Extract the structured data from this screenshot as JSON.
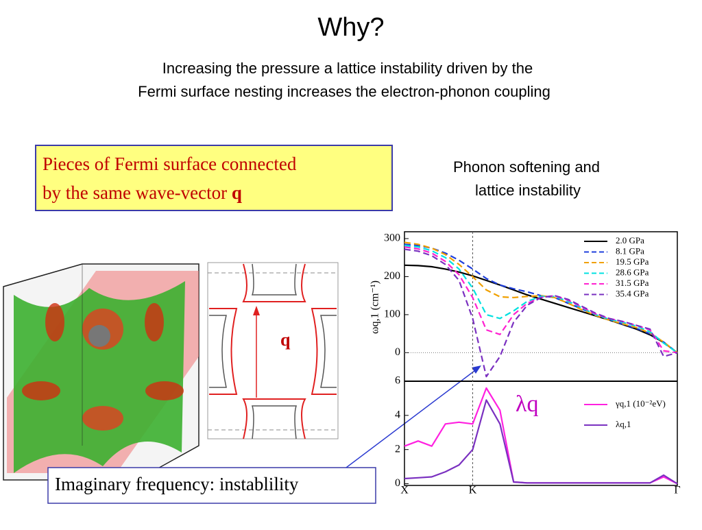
{
  "title": "Why?",
  "subtitle": [
    "Increasing the pressure a lattice instability driven by the",
    "Fermi surface nesting increases the electron-phonon coupling"
  ],
  "box": {
    "line1": "Pieces of Fermi surface connected",
    "line2": "by the same wave-vector ",
    "q": "q"
  },
  "phonon_caption": [
    "Phonon softening and",
    "lattice instability"
  ],
  "q_label": "q",
  "imaginary_label": "Imaginary frequency: instablility",
  "chart_data": [
    {
      "type": "line",
      "y_label": "ωq,1 (cm⁻¹)",
      "legend": "upper right",
      "x": [
        0,
        0.05,
        0.1,
        0.15,
        0.2,
        0.25,
        0.3,
        0.35,
        0.4,
        0.45,
        0.5,
        0.55,
        0.6,
        0.65,
        0.7,
        0.75,
        0.8,
        0.85,
        0.9,
        0.95,
        1
      ],
      "xlim": [
        0,
        1
      ],
      "ylim": [
        -75,
        318
      ],
      "yticks": [
        0,
        100,
        200,
        300
      ],
      "series": [
        {
          "name": "2.0 GPa",
          "color": "#000000",
          "dashed": false,
          "values": [
            230,
            229,
            226,
            220,
            212,
            202,
            190,
            178,
            165,
            152,
            141,
            130,
            119,
            108,
            97,
            86,
            74,
            62,
            47,
            27,
            0
          ]
        },
        {
          "name": "8.1 GPa",
          "color": "#1f3fdc",
          "dashed": true,
          "values": [
            285,
            282,
            275,
            262,
            243,
            220,
            195,
            178,
            168,
            160,
            150,
            145,
            130,
            115,
            100,
            88,
            75,
            64,
            50,
            28,
            0
          ]
        },
        {
          "name": "19.5 GPa",
          "color": "#f0a000",
          "dashed": true,
          "values": [
            290,
            285,
            275,
            258,
            232,
            200,
            165,
            147,
            145,
            148,
            150,
            145,
            130,
            113,
            98,
            86,
            76,
            66,
            52,
            28,
            0
          ]
        },
        {
          "name": "28.6 GPa",
          "color": "#00e0e0",
          "dashed": true,
          "values": [
            282,
            278,
            268,
            250,
            220,
            170,
            100,
            90,
            110,
            135,
            148,
            148,
            135,
            118,
            100,
            88,
            80,
            70,
            55,
            25,
            0
          ]
        },
        {
          "name": "31.5 GPa",
          "color": "#ff20d0",
          "dashed": true,
          "values": [
            278,
            273,
            262,
            240,
            205,
            145,
            60,
            48,
            100,
            130,
            145,
            150,
            138,
            120,
            102,
            90,
            82,
            72,
            60,
            5,
            0
          ]
        },
        {
          "name": "35.4 GPa",
          "color": "#7a30c0",
          "dashed": true,
          "values": [
            272,
            267,
            255,
            232,
            190,
            90,
            -63,
            -10,
            80,
            125,
            145,
            150,
            140,
            122,
            104,
            90,
            82,
            72,
            62,
            -10,
            0
          ]
        }
      ]
    },
    {
      "type": "line",
      "annotation": "λq",
      "legend": "upper right",
      "x": [
        0,
        0.05,
        0.1,
        0.15,
        0.2,
        0.25,
        0.3,
        0.35,
        0.4,
        0.45,
        0.5,
        0.55,
        0.6,
        0.65,
        0.7,
        0.75,
        0.8,
        0.85,
        0.9,
        0.95,
        1
      ],
      "xlim": [
        0,
        1
      ],
      "ylim": [
        -0.1,
        6
      ],
      "yticks": [
        0,
        2,
        4,
        6
      ],
      "xticks": [
        {
          "value": 0,
          "label": "X"
        },
        {
          "value": 0.25,
          "label": "K"
        },
        {
          "value": 1,
          "label": "Γ"
        }
      ],
      "series": [
        {
          "name": "γq,1 (10⁻²eV)",
          "color": "#ff20e0",
          "dashed": false,
          "values": [
            2.2,
            2.5,
            2.2,
            3.5,
            3.6,
            3.5,
            5.6,
            4.3,
            0.1,
            0.05,
            0.05,
            0.05,
            0.05,
            0.05,
            0.05,
            0.05,
            0.05,
            0.05,
            0.05,
            0.4,
            0
          ]
        },
        {
          "name": "λq,1",
          "color": "#7a30c0",
          "dashed": false,
          "values": [
            0.3,
            0.35,
            0.4,
            0.7,
            1.1,
            2,
            4.9,
            3.5,
            0.1,
            0.05,
            0.05,
            0.05,
            0.05,
            0.05,
            0.05,
            0.05,
            0.05,
            0.05,
            0.05,
            0.5,
            0
          ]
        }
      ]
    }
  ]
}
